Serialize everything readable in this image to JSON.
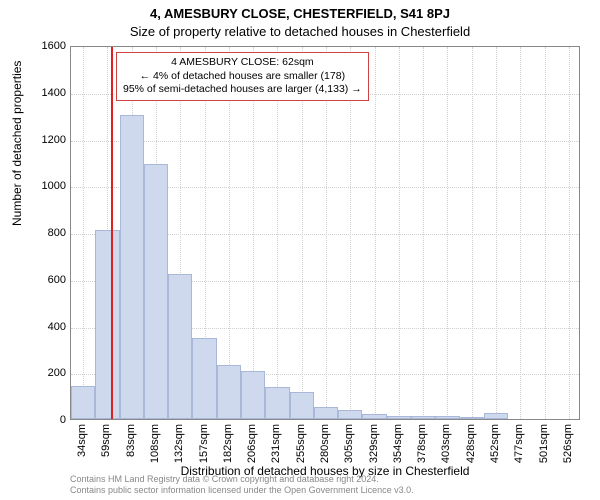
{
  "title_line1": "4, AMESBURY CLOSE, CHESTERFIELD, S41 8PJ",
  "title_line2": "Size of property relative to detached houses in Chesterfield",
  "y_axis_label": "Number of detached properties",
  "x_axis_label": "Distribution of detached houses by size in Chesterfield",
  "chart": {
    "type": "histogram",
    "ylim": [
      0,
      1600
    ],
    "ytick_step": 200,
    "bar_fill": "#cfd9ee",
    "bar_border": "#a9b8d9",
    "grid_color": "#d0d0d0",
    "background_color": "#ffffff",
    "marker_color": "#e02020",
    "marker_x_index": 1.15,
    "x_categories": [
      "34sqm",
      "59sqm",
      "83sqm",
      "108sqm",
      "132sqm",
      "157sqm",
      "182sqm",
      "206sqm",
      "231sqm",
      "255sqm",
      "280sqm",
      "305sqm",
      "329sqm",
      "354sqm",
      "378sqm",
      "403sqm",
      "428sqm",
      "452sqm",
      "477sqm",
      "501sqm",
      "526sqm"
    ],
    "values": [
      140,
      810,
      1300,
      1090,
      620,
      345,
      230,
      205,
      135,
      115,
      50,
      40,
      20,
      15,
      15,
      12,
      10,
      25,
      0,
      0,
      0
    ]
  },
  "annotation": {
    "line1": "4 AMESBURY CLOSE: 62sqm",
    "line2": "← 4% of detached houses are smaller (178)",
    "line3": "95% of semi-detached houses are larger (4,133) →"
  },
  "footnote_line1": "Contains HM Land Registry data © Crown copyright and database right 2024.",
  "footnote_line2": "Contains public sector information licensed under the Open Government Licence v3.0."
}
